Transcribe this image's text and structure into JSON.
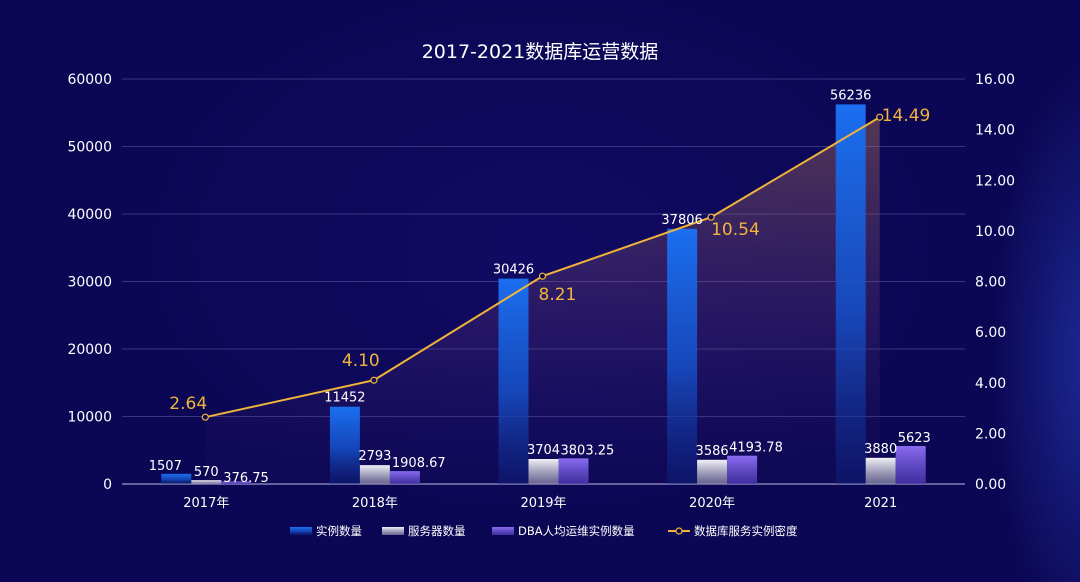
{
  "chart_data": {
    "type": "bar",
    "title": "2017-2021数据库运营数据",
    "categories": [
      "2017年",
      "2018年",
      "2019年",
      "2020年",
      "2021"
    ],
    "series": [
      {
        "name": "实例数量",
        "type": "bar",
        "axis": "left",
        "values": [
          1507,
          11452,
          30426,
          37806,
          56236
        ],
        "labels": [
          "1507",
          "11452",
          "30426",
          "37806",
          "56236"
        ],
        "color": "#1f6fe6"
      },
      {
        "name": "服务器数量",
        "type": "bar",
        "axis": "left",
        "values": [
          570,
          2793,
          3704,
          3586,
          3880
        ],
        "labels": [
          "570",
          "2793",
          "3704",
          "3586",
          "3880"
        ],
        "color": "#d9d9e6"
      },
      {
        "name": "DBA人均运维实例数量",
        "type": "bar",
        "axis": "left",
        "values": [
          376.75,
          1908.67,
          3803.25,
          4193.78,
          5623
        ],
        "labels": [
          "376.75",
          "1908.67",
          "3803.25",
          "4193.78",
          "5623"
        ],
        "color": "#7b5fe0"
      },
      {
        "name": "数据库服务实例密度",
        "type": "line",
        "axis": "right",
        "values": [
          2.64,
          4.1,
          8.21,
          10.54,
          14.49
        ],
        "labels": [
          "2.64",
          "4.10",
          "8.21",
          "10.54",
          "14.49"
        ],
        "color": "#f0b43a"
      }
    ],
    "left_axis": {
      "min": 0,
      "max": 60000,
      "ticks": [
        "0",
        "10000",
        "20000",
        "30000",
        "40000",
        "50000",
        "60000"
      ]
    },
    "right_axis": {
      "min": 0,
      "max": 16,
      "ticks": [
        "0.00",
        "2.00",
        "4.00",
        "6.00",
        "8.00",
        "10.00",
        "12.00",
        "14.00",
        "16.00"
      ]
    },
    "grid": true,
    "legend_position": "bottom"
  }
}
